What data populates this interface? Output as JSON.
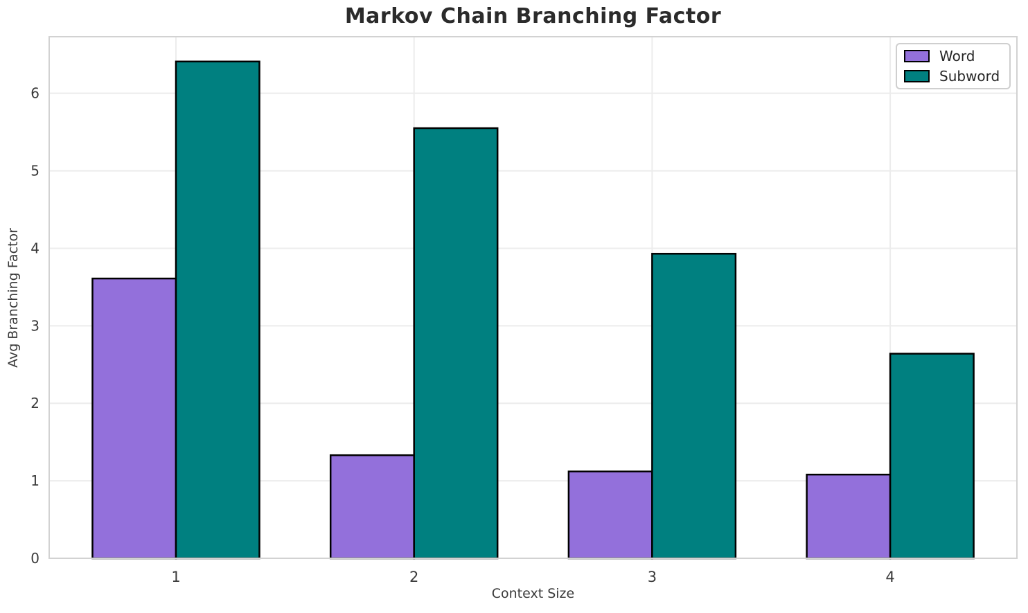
{
  "chart_data": {
    "type": "bar",
    "title": "Markov Chain Branching Factor",
    "xlabel": "Context Size",
    "ylabel": "Avg Branching Factor",
    "categories": [
      "1",
      "2",
      "3",
      "4"
    ],
    "series": [
      {
        "name": "Word",
        "color": "#9370DB",
        "values": [
          3.61,
          1.33,
          1.12,
          1.08
        ]
      },
      {
        "name": "Subword",
        "color": "#008080",
        "values": [
          6.41,
          5.55,
          3.93,
          2.64
        ]
      }
    ],
    "ylim": [
      0,
      6.73
    ],
    "yticks": [
      0,
      1,
      2,
      3,
      4,
      5,
      6
    ],
    "grid": true,
    "legend_position": "upper right",
    "bar_edge_color": "#000000"
  },
  "colors": {
    "background": "#ffffff",
    "grid_line": "#ececec",
    "spine": "#d2d2d2",
    "tick_text": "#3a3a3a",
    "title_text": "#2b2b2b"
  }
}
